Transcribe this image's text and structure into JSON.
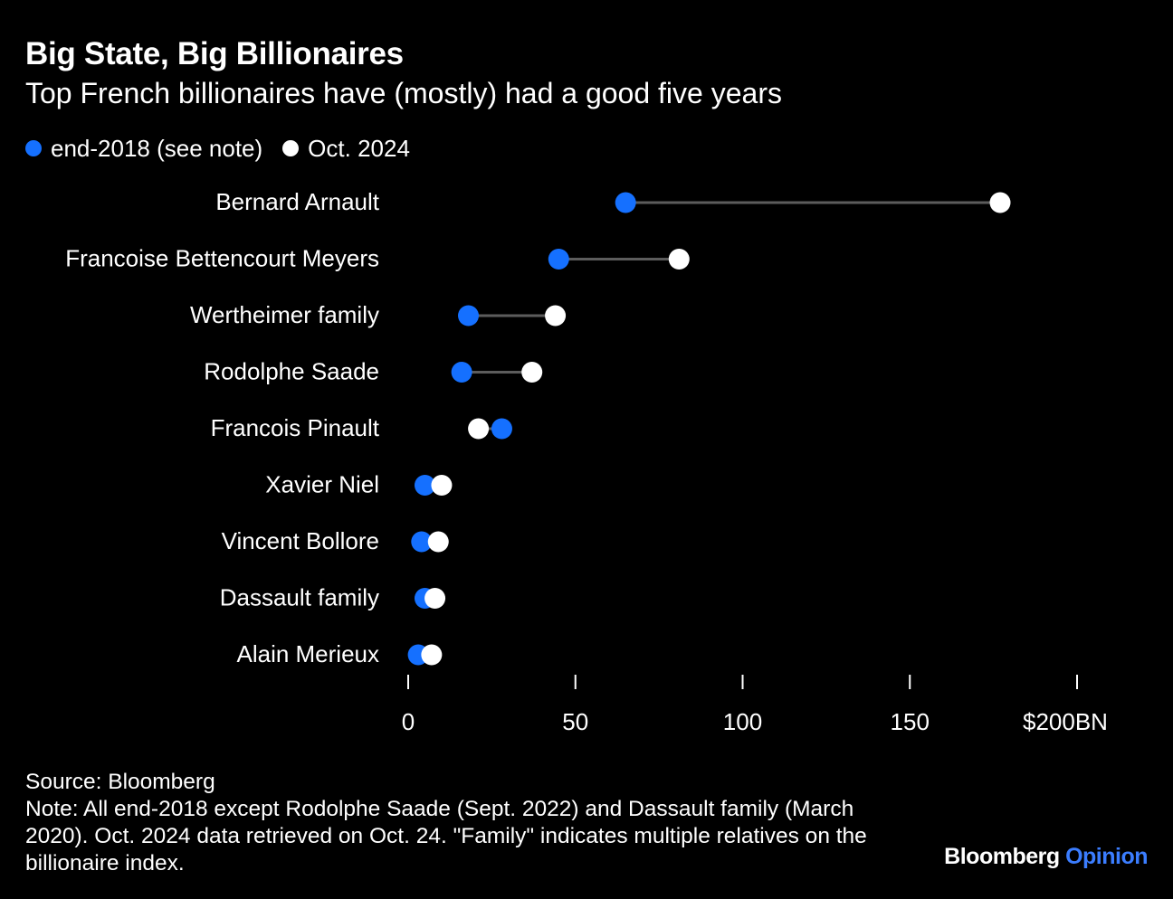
{
  "colors": {
    "background": "#000000",
    "end_2018": "#1570ff",
    "oct_2024": "#ffffff",
    "connector": "#5c5c5c",
    "brand_accent": "#3b7dff"
  },
  "header": {
    "title": "Big State, Big Billionaires",
    "subtitle": "Top French billionaires have (mostly) had a good five years"
  },
  "legend": {
    "items": [
      {
        "label": "end-2018 (see note)",
        "color": "#1570ff"
      },
      {
        "label": "Oct. 2024",
        "color": "#ffffff"
      }
    ]
  },
  "chart_data": {
    "type": "dumbbell",
    "title": "Big State, Big Billionaires",
    "subtitle": "Top French billionaires have (mostly) had a good five years",
    "xlabel": "",
    "ylabel": "",
    "xlim": [
      0,
      200
    ],
    "x_ticks": [
      0,
      50,
      100,
      150,
      200
    ],
    "x_tick_labels": [
      "0",
      "50",
      "100",
      "150",
      "$200BN"
    ],
    "grid": false,
    "legend_position": "top-left",
    "categories": [
      "Bernard Arnault",
      "Francoise Bettencourt Meyers",
      "Wertheimer family",
      "Rodolphe Saade",
      "Francois Pinault",
      "Xavier Niel",
      "Vincent Bollore",
      "Dassault family",
      "Alain Merieux"
    ],
    "series": [
      {
        "name": "end-2018 (see note)",
        "values": [
          65,
          45,
          18,
          16,
          28,
          5,
          4,
          5,
          3
        ]
      },
      {
        "name": "Oct. 2024",
        "values": [
          177,
          81,
          44,
          37,
          21,
          10,
          9,
          8,
          7
        ]
      }
    ]
  },
  "footer": {
    "source": "Source: Bloomberg",
    "note": "Note: All end-2018 except Rodolphe Saade (Sept. 2022) and Dassault family (March 2020). Oct. 2024 data retrieved on Oct. 24. \"Family\" indicates multiple relatives on the billionaire index."
  },
  "brand": {
    "name": "Bloomberg",
    "suffix": "Opinion"
  }
}
